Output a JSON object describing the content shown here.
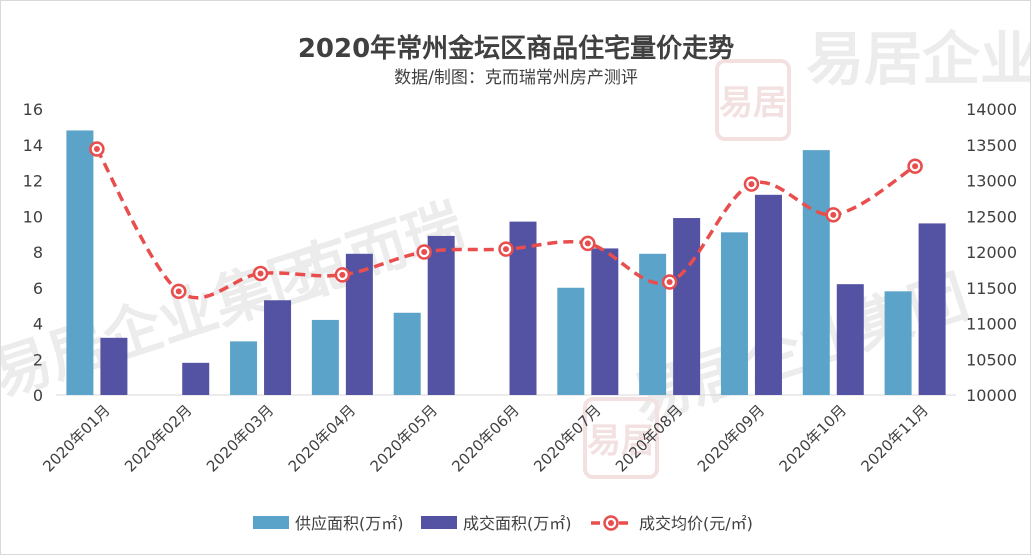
{
  "chart_data": {
    "type": "bar+line",
    "title": "2020年常州金坛区商品住宅量价走势",
    "subtitle": "数据/制图：克而瑞常州房产测评",
    "categories": [
      "2020年01月",
      "2020年02月",
      "2020年03月",
      "2020年04月",
      "2020年05月",
      "2020年06月",
      "2020年07月",
      "2020年08月",
      "2020年09月",
      "2020年10月",
      "2020年11月"
    ],
    "y_left": {
      "min": 0,
      "max": 16,
      "step": 2
    },
    "y_right": {
      "min": 10000,
      "max": 14000,
      "step": 500
    },
    "series": [
      {
        "name": "供应面积(万㎡)",
        "kind": "bar",
        "axis": "left",
        "color": "#5ba3c9",
        "values": [
          14.8,
          null,
          3.0,
          4.2,
          4.6,
          null,
          6.0,
          7.9,
          9.1,
          13.7,
          5.8
        ]
      },
      {
        "name": "成交面积(万㎡)",
        "kind": "bar",
        "axis": "left",
        "color": "#5352a3",
        "values": [
          3.2,
          1.8,
          5.3,
          7.9,
          8.9,
          9.7,
          8.2,
          9.9,
          11.2,
          6.2,
          9.6
        ]
      },
      {
        "name": "成交均价(元/㎡)",
        "kind": "line",
        "axis": "right",
        "color": "#e94e4e",
        "values": [
          13440,
          11450,
          11700,
          11680,
          12000,
          12040,
          12120,
          11580,
          12950,
          12520,
          13200
        ]
      }
    ],
    "grid": false,
    "legend": "bottom"
  },
  "watermark": {
    "texts": [
      "易居企业集团",
      "克而瑞"
    ],
    "seal": "易居"
  }
}
